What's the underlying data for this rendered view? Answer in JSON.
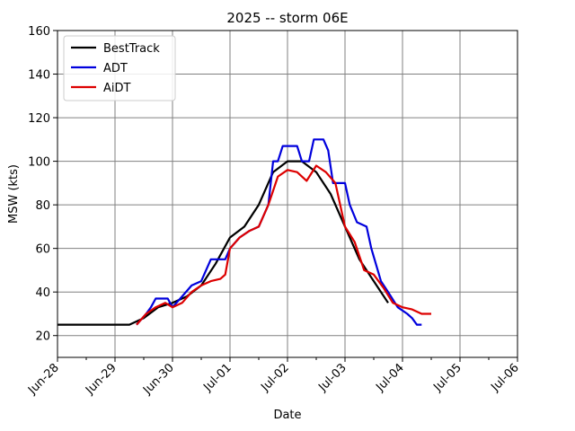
{
  "chart_data": {
    "type": "line",
    "title": "2025 -- storm 06E",
    "xlabel": "Date",
    "ylabel": "MSW (kts)",
    "x_axis_type": "date",
    "xlim": [
      "2025-06-28",
      "2025-07-06"
    ],
    "ylim": [
      10,
      160
    ],
    "x_ticks": [
      "2025-06-28",
      "2025-06-29",
      "2025-06-30",
      "2025-07-01",
      "2025-07-02",
      "2025-07-03",
      "2025-07-04",
      "2025-07-05",
      "2025-07-06"
    ],
    "x_tick_labels": [
      "Jun-28",
      "Jun-29",
      "Jun-30",
      "Jul-01",
      "Jul-02",
      "Jul-03",
      "Jul-04",
      "Jul-05",
      "Jul-06"
    ],
    "y_ticks": [
      20,
      40,
      60,
      80,
      100,
      120,
      140,
      160
    ],
    "grid": true,
    "legend_position": "top-left",
    "series": [
      {
        "name": "BestTrack",
        "color": "#000000",
        "points": [
          [
            "2025-06-28T00:00",
            25
          ],
          [
            "2025-06-28T12:00",
            25
          ],
          [
            "2025-06-29T00:00",
            25
          ],
          [
            "2025-06-29T06:00",
            25
          ],
          [
            "2025-06-29T12:00",
            28
          ],
          [
            "2025-06-29T18:00",
            33
          ],
          [
            "2025-06-30T00:00",
            35
          ],
          [
            "2025-06-30T06:00",
            38
          ],
          [
            "2025-06-30T12:00",
            43
          ],
          [
            "2025-06-30T18:00",
            53
          ],
          [
            "2025-07-01T00:00",
            65
          ],
          [
            "2025-07-01T06:00",
            70
          ],
          [
            "2025-07-01T12:00",
            80
          ],
          [
            "2025-07-01T18:00",
            95
          ],
          [
            "2025-07-02T00:00",
            100
          ],
          [
            "2025-07-02T06:00",
            100
          ],
          [
            "2025-07-02T12:00",
            95
          ],
          [
            "2025-07-02T18:00",
            85
          ],
          [
            "2025-07-03T00:00",
            70
          ],
          [
            "2025-07-03T06:00",
            55
          ],
          [
            "2025-07-03T12:00",
            45
          ],
          [
            "2025-07-03T18:00",
            35
          ]
        ]
      },
      {
        "name": "ADT",
        "color": "#0000dd",
        "points": [
          [
            "2025-06-29T09:00",
            25
          ],
          [
            "2025-06-29T13:00",
            30
          ],
          [
            "2025-06-29T15:00",
            33
          ],
          [
            "2025-06-29T17:00",
            37
          ],
          [
            "2025-06-29T22:00",
            37
          ],
          [
            "2025-06-30T00:00",
            33
          ],
          [
            "2025-06-30T04:00",
            38
          ],
          [
            "2025-06-30T08:00",
            43
          ],
          [
            "2025-06-30T12:00",
            45
          ],
          [
            "2025-06-30T16:00",
            55
          ],
          [
            "2025-06-30T22:00",
            55
          ],
          [
            "2025-07-01T00:00",
            60
          ],
          [
            "2025-07-01T04:00",
            65
          ],
          [
            "2025-07-01T08:00",
            68
          ],
          [
            "2025-07-01T12:00",
            70
          ],
          [
            "2025-07-01T16:00",
            80
          ],
          [
            "2025-07-01T18:00",
            100
          ],
          [
            "2025-07-01T20:00",
            100
          ],
          [
            "2025-07-01T22:00",
            107
          ],
          [
            "2025-07-02T04:00",
            107
          ],
          [
            "2025-07-02T06:00",
            100
          ],
          [
            "2025-07-02T09:00",
            100
          ],
          [
            "2025-07-02T11:00",
            110
          ],
          [
            "2025-07-02T15:00",
            110
          ],
          [
            "2025-07-02T17:00",
            105
          ],
          [
            "2025-07-02T19:00",
            90
          ],
          [
            "2025-07-03T00:00",
            90
          ],
          [
            "2025-07-03T02:00",
            80
          ],
          [
            "2025-07-03T05:00",
            72
          ],
          [
            "2025-07-03T09:00",
            70
          ],
          [
            "2025-07-03T11:00",
            60
          ],
          [
            "2025-07-03T15:00",
            45
          ],
          [
            "2025-07-03T18:00",
            40
          ],
          [
            "2025-07-03T22:00",
            33
          ],
          [
            "2025-07-04T02:00",
            30
          ],
          [
            "2025-07-04T04:00",
            28
          ],
          [
            "2025-07-04T06:00",
            25
          ],
          [
            "2025-07-04T08:00",
            25
          ]
        ]
      },
      {
        "name": "AiDT",
        "color": "#dd0000",
        "points": [
          [
            "2025-06-29T09:00",
            25
          ],
          [
            "2025-06-29T13:00",
            30
          ],
          [
            "2025-06-29T17:00",
            33
          ],
          [
            "2025-06-29T21:00",
            35
          ],
          [
            "2025-06-30T00:00",
            33
          ],
          [
            "2025-06-30T04:00",
            35
          ],
          [
            "2025-06-30T08:00",
            40
          ],
          [
            "2025-06-30T12:00",
            43
          ],
          [
            "2025-06-30T16:00",
            45
          ],
          [
            "2025-06-30T20:00",
            46
          ],
          [
            "2025-06-30T22:00",
            48
          ],
          [
            "2025-07-01T00:00",
            60
          ],
          [
            "2025-07-01T04:00",
            65
          ],
          [
            "2025-07-01T08:00",
            68
          ],
          [
            "2025-07-01T12:00",
            70
          ],
          [
            "2025-07-01T16:00",
            80
          ],
          [
            "2025-07-01T20:00",
            93
          ],
          [
            "2025-07-02T00:00",
            96
          ],
          [
            "2025-07-02T04:00",
            95
          ],
          [
            "2025-07-02T08:00",
            91
          ],
          [
            "2025-07-02T12:00",
            98
          ],
          [
            "2025-07-02T16:00",
            95
          ],
          [
            "2025-07-02T20:00",
            90
          ],
          [
            "2025-07-03T00:00",
            70
          ],
          [
            "2025-07-03T04:00",
            63
          ],
          [
            "2025-07-03T08:00",
            50
          ],
          [
            "2025-07-03T12:00",
            48
          ],
          [
            "2025-07-03T16:00",
            42
          ],
          [
            "2025-07-03T20:00",
            35
          ],
          [
            "2025-07-04T00:00",
            33
          ],
          [
            "2025-07-04T04:00",
            32
          ],
          [
            "2025-07-04T08:00",
            30
          ],
          [
            "2025-07-04T12:00",
            30
          ]
        ]
      }
    ]
  }
}
